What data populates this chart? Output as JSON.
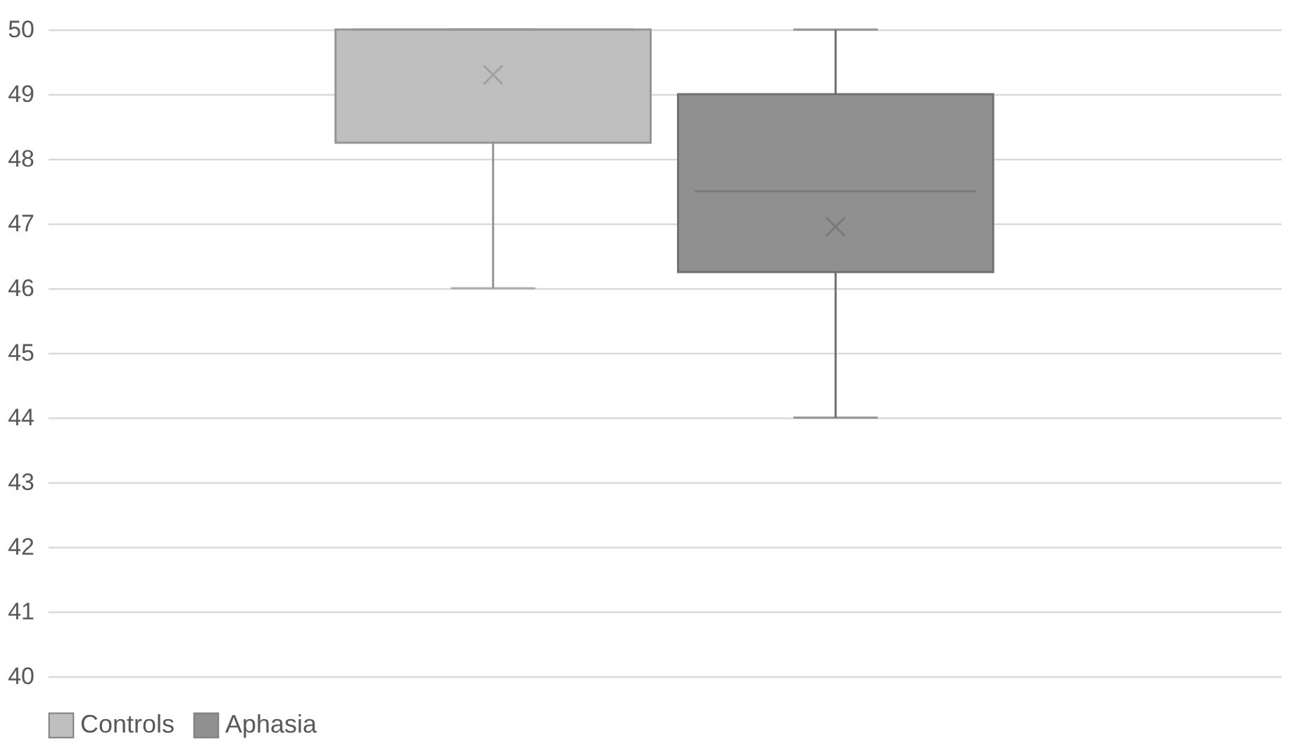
{
  "chart_data": {
    "type": "box",
    "categories": [
      null
    ],
    "series": [
      {
        "name": "Controls",
        "color": "#bfbfbf",
        "boxes": [
          {
            "low": 46,
            "q1": 48.25,
            "median": 50,
            "q3": 50,
            "high": 50,
            "mean": 49.3
          }
        ]
      },
      {
        "name": "Aphasia",
        "color": "#909090",
        "boxes": [
          {
            "low": 44,
            "q1": 46.25,
            "median": 47.5,
            "q3": 49,
            "high": 50,
            "mean": 46.95
          }
        ]
      }
    ],
    "ylim": [
      40,
      50
    ],
    "yticks": [
      40,
      41,
      42,
      43,
      44,
      45,
      46,
      47,
      48,
      49,
      50
    ],
    "grid": "y",
    "legend": "bottom"
  }
}
